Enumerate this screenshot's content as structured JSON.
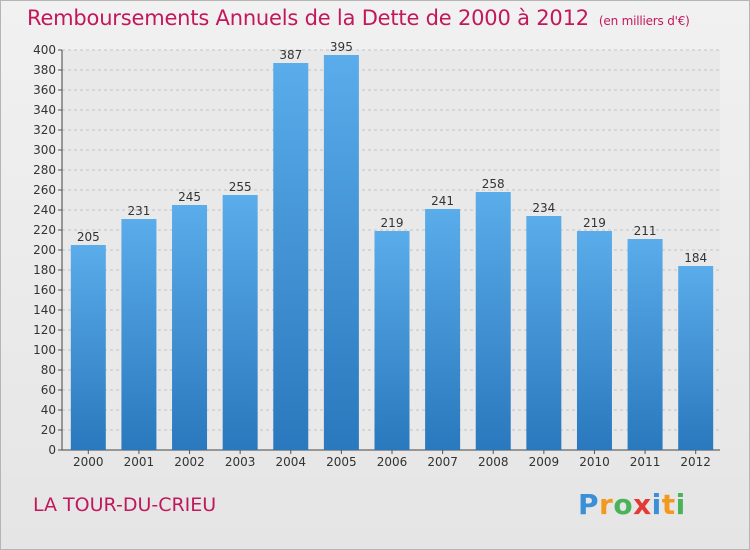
{
  "chart_title": "Remboursements Annuels de la Dette de 2000 à 2012",
  "chart_unit": "(en milliers d'€)",
  "commune": "LA TOUR-DU-CRIEU",
  "brand": {
    "letters": [
      "P",
      "r",
      "o",
      "x",
      "i",
      "t",
      "i"
    ],
    "colors": [
      "#3a8fd8",
      "#f29a1f",
      "#49b35a",
      "#e53935",
      "#3a8fd8",
      "#f29a1f",
      "#49b35a"
    ]
  },
  "colors": {
    "bar_top": "#5aacea",
    "bar_bottom": "#2a78bd",
    "title": "#c2185b"
  },
  "chart_data": {
    "type": "bar",
    "title": "Remboursements Annuels de la Dette de 2000 à 2012",
    "subtitle": "(en milliers d'€)",
    "xlabel": "",
    "ylabel": "",
    "categories": [
      "2000",
      "2001",
      "2002",
      "2003",
      "2004",
      "2005",
      "2006",
      "2007",
      "2008",
      "2009",
      "2010",
      "2011",
      "2012"
    ],
    "values": [
      205,
      231,
      245,
      255,
      387,
      395,
      219,
      241,
      258,
      234,
      219,
      211,
      184
    ],
    "ylim": [
      0,
      400
    ],
    "yticks": [
      0,
      20,
      40,
      60,
      80,
      100,
      120,
      140,
      160,
      180,
      200,
      220,
      240,
      260,
      280,
      300,
      320,
      340,
      360,
      380,
      400
    ],
    "grid": true,
    "legend": "none"
  }
}
